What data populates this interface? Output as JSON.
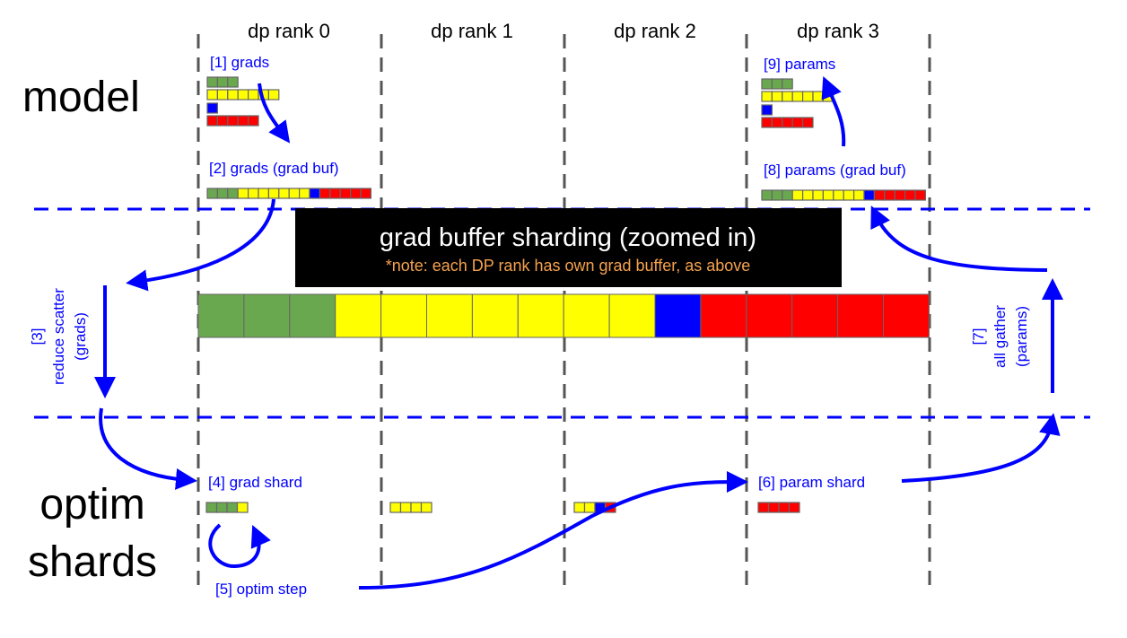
{
  "colors": {
    "green": "#6aa84f",
    "yellow": "#ffff00",
    "blue": "#0000ff",
    "red": "#ff0000",
    "arrow": "#0000ff",
    "note": "#f6a24e"
  },
  "columns": [
    "dp rank 0",
    "dp rank 1",
    "dp rank 2",
    "dp rank 3"
  ],
  "rows": {
    "model": "model",
    "optim_line1": "optim",
    "optim_line2": "shards"
  },
  "labels": {
    "grads": "[1] grads",
    "grad_buf": "[2] grads (grad buf)",
    "reduce_scatter": [
      "[3]",
      "reduce scatter",
      "(grads)"
    ],
    "grad_shard": "[4] grad shard",
    "optim_step": "[5] optim step",
    "param_shard": "[6] param shard",
    "all_gather": [
      "[7]",
      "all gather",
      "(params)"
    ],
    "params_buf": "[8] params (grad buf)",
    "params": "[9] params"
  },
  "banner": {
    "title": "grad buffer sharding (zoomed in)",
    "note": "*note: each DP rank has own grad buffer, as above"
  },
  "tensors": [
    [
      "green",
      "green",
      "green"
    ],
    [
      "yellow",
      "yellow",
      "yellow",
      "yellow",
      "yellow",
      "yellow",
      "yellow"
    ],
    [
      "blue"
    ],
    [
      "red",
      "red",
      "red",
      "red",
      "red"
    ]
  ],
  "grad_buffer": [
    "green",
    "green",
    "green",
    "yellow",
    "yellow",
    "yellow",
    "yellow",
    "yellow",
    "yellow",
    "yellow",
    "blue",
    "red",
    "red",
    "red",
    "red",
    "red"
  ],
  "shards": [
    [
      "green",
      "green",
      "green",
      "yellow"
    ],
    [
      "yellow",
      "yellow",
      "yellow",
      "yellow"
    ],
    [
      "yellow",
      "yellow",
      "blue",
      "red"
    ],
    [
      "red",
      "red",
      "red",
      "red"
    ]
  ]
}
